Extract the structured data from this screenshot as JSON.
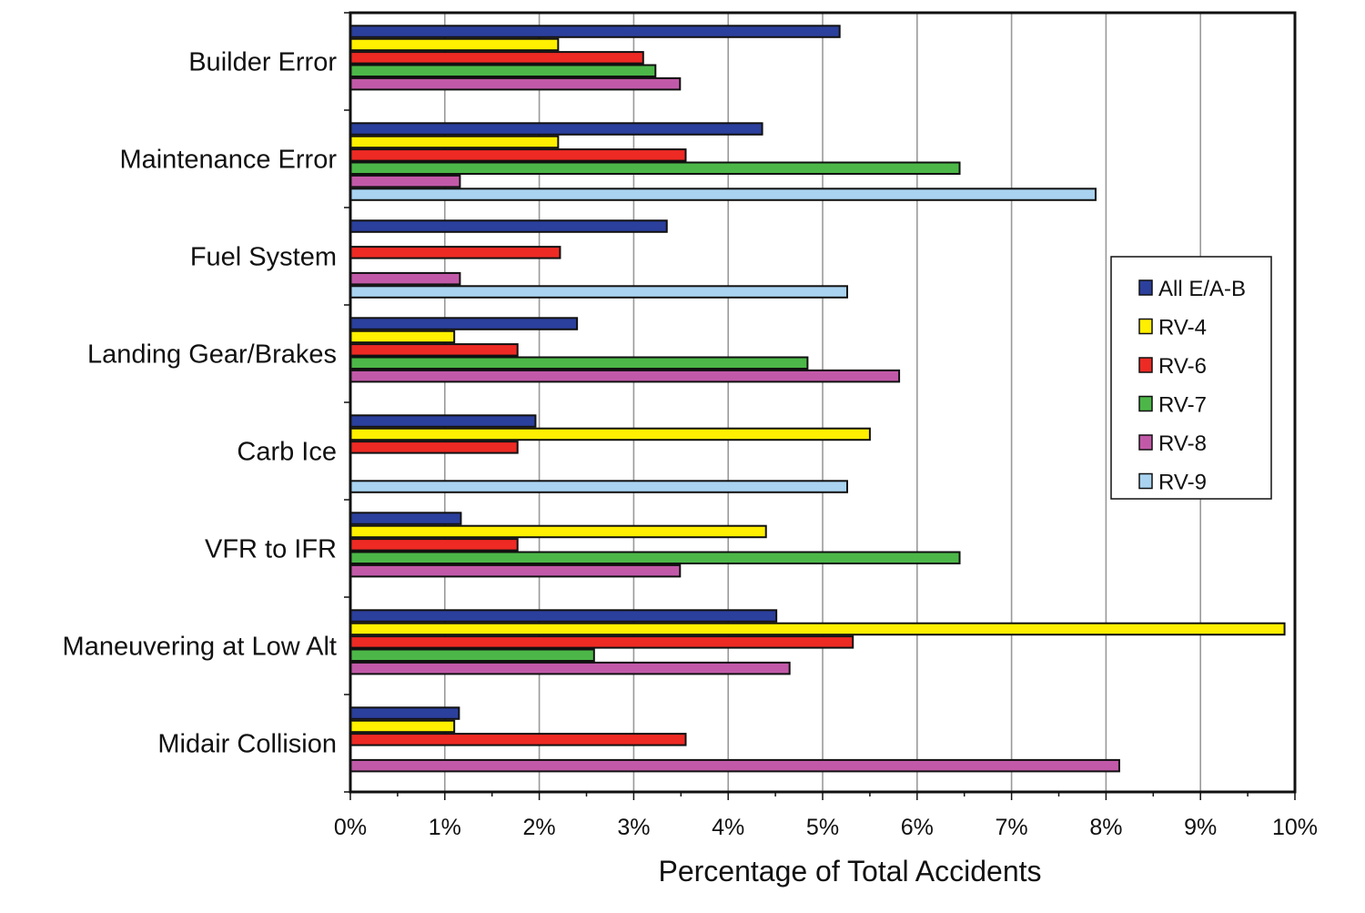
{
  "chart_data": {
    "type": "bar",
    "orientation": "horizontal",
    "title": "",
    "xlabel": "Percentage of Total Accidents",
    "ylabel": "",
    "xlim": [
      0,
      10
    ],
    "x_ticks": [
      "0%",
      "1%",
      "2%",
      "3%",
      "4%",
      "5%",
      "6%",
      "7%",
      "8%",
      "9%",
      "10%"
    ],
    "grid": "vertical",
    "legend_position": "right",
    "categories": [
      "Builder Error",
      "Maintenance Error",
      "Fuel System",
      "Landing Gear/Brakes",
      "Carb Ice",
      "VFR to IFR",
      "Maneuvering at Low Alt",
      "Midair Collision"
    ],
    "series": [
      {
        "name": "All E/A-B",
        "color": "#2b3f9c",
        "values": [
          5.18,
          4.36,
          3.35,
          2.4,
          1.96,
          1.17,
          4.51,
          1.15
        ]
      },
      {
        "name": "RV-4",
        "color": "#ffef00",
        "values": [
          2.2,
          2.2,
          null,
          1.1,
          5.5,
          4.4,
          9.89,
          1.1
        ]
      },
      {
        "name": "RV-6",
        "color": "#ee2a24",
        "values": [
          3.1,
          3.55,
          2.22,
          1.77,
          1.77,
          1.77,
          5.32,
          3.55
        ]
      },
      {
        "name": "RV-7",
        "color": "#4cb748",
        "values": [
          3.23,
          6.45,
          null,
          4.84,
          null,
          6.45,
          2.58,
          null
        ]
      },
      {
        "name": "RV-8",
        "color": "#c259a8",
        "values": [
          3.49,
          1.16,
          1.16,
          5.81,
          null,
          3.49,
          4.65,
          8.14
        ]
      },
      {
        "name": "RV-9",
        "color": "#a9d3f0",
        "values": [
          null,
          7.89,
          5.26,
          null,
          5.26,
          null,
          null,
          null
        ]
      }
    ]
  }
}
